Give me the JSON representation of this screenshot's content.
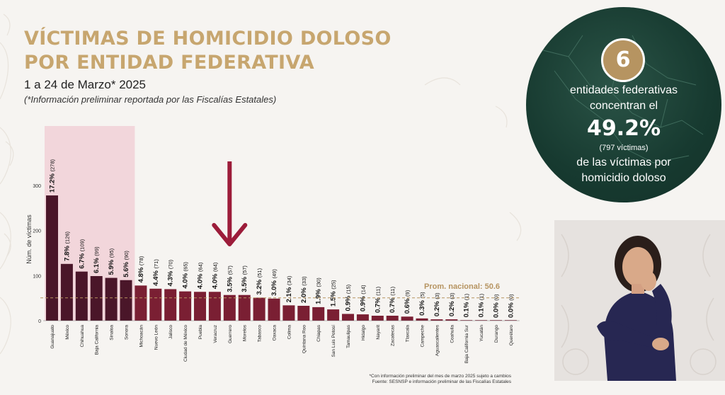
{
  "header": {
    "title_line1": "VÍCTIMAS DE HOMICIDIO DOLOSO",
    "title_line2": "POR ENTIDAD FEDERATIVA",
    "subtitle": "1 a 24 de Marzo* 2025",
    "note": "(*Información preliminar reportada por las Fiscalías Estatales)"
  },
  "colors": {
    "title": "#c7a66f",
    "highlight_bar": "#4a1629",
    "bar": "#7a1f33",
    "highlight_band": "#f2d6db",
    "arrow": "#9c1c3a",
    "circle_bg": "#173a30",
    "badge": "#b69461"
  },
  "chart_data": {
    "type": "bar",
    "ylabel": "Núm. de víctimas",
    "ylim": [
      0,
      330
    ],
    "yticks": [
      0,
      100,
      200,
      300
    ],
    "grid": false,
    "highlight_count": 6,
    "categories": [
      "Guanajuato",
      "México",
      "Chihuahua",
      "Baja California",
      "Sinaloa",
      "Sonora",
      "Michoacán",
      "Nuevo León",
      "Jalisco",
      "Ciudad de México",
      "Puebla",
      "Veracruz",
      "Guerrero",
      "Morelos",
      "Tabasco",
      "Oaxaca",
      "Colima",
      "Quintana Roo",
      "Chiapas",
      "San Luis Potosí",
      "Tamaulipas",
      "Hidalgo",
      "Nayarit",
      "Zacatecas",
      "Tlaxcala",
      "Campeche",
      "Aguascalientes",
      "Coahuila",
      "Baja California Sur",
      "Yucatán",
      "Durango",
      "Querétaro"
    ],
    "values": [
      278,
      126,
      109,
      99,
      95,
      90,
      78,
      71,
      70,
      65,
      64,
      64,
      57,
      57,
      51,
      49,
      34,
      33,
      30,
      25,
      15,
      14,
      11,
      11,
      9,
      5,
      3,
      3,
      1,
      1,
      0,
      0
    ],
    "percent_labels": [
      "17.2%",
      "7.8%",
      "6.7%",
      "6.1%",
      "5.9%",
      "5.6%",
      "4.8%",
      "4.4%",
      "4.3%",
      "4.0%",
      "4.0%",
      "4.0%",
      "3.5%",
      "3.5%",
      "3.2%",
      "3.0%",
      "2.1%",
      "2.0%",
      "1.9%",
      "1.5%",
      "0.9%",
      "0.9%",
      "0.7%",
      "0.7%",
      "0.6%",
      "0.3%",
      "0.2%",
      "0.2%",
      "0.1%",
      "0.1%",
      "0.0%",
      "0.0%"
    ],
    "count_labels": [
      "(278)",
      "(126)",
      "(109)",
      "(99)",
      "(95)",
      "(90)",
      "(78)",
      "(71)",
      "(70)",
      "(65)",
      "(64)",
      "(64)",
      "(57)",
      "(57)",
      "(51)",
      "(49)",
      "(34)",
      "(33)",
      "(30)",
      "(25)",
      "(15)",
      "(14)",
      "(11)",
      "(11)",
      "(9)",
      "(5)",
      "(3)",
      "(3)",
      "(1)",
      "(1)",
      "(0)",
      "(0)"
    ],
    "reference_line": {
      "value": 50.6,
      "label": "Prom. nacional: 50.6"
    },
    "annotation": {
      "type": "arrow",
      "target_category": "Guerrero"
    }
  },
  "summary": {
    "count": "6",
    "line1": "entidades federativas",
    "line2": "concentran el",
    "percent": "49.2%",
    "detail": "(797 víctimas)",
    "line3": "de las víctimas por",
    "line4": "homicidio doloso"
  },
  "footer": {
    "line1": "*Con información preliminar del mes de marzo 2025 sujeto a cambios",
    "line2": "Fuente: SESNSP e información preliminar de las Fiscalías Estatales"
  }
}
